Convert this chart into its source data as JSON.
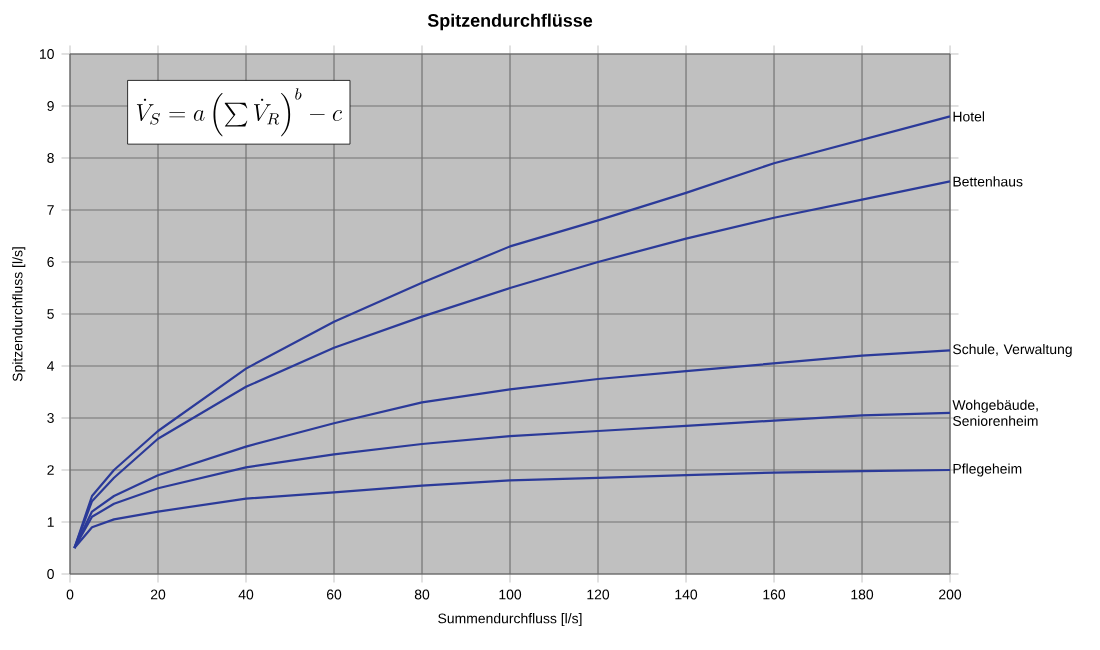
{
  "chart_data": {
    "type": "line",
    "title": "Spitzendurchflüsse",
    "xlabel": "Summendurchfluss [l/s]",
    "ylabel": "Spitzendurchfluss [l/s]",
    "annotations": [
      "\\dot{V}_{S} = a\\left(\\sum \\dot{V}_{R}\\right)^{b} - c"
    ],
    "x": [
      1,
      5,
      10,
      20,
      40,
      60,
      80,
      100,
      120,
      140,
      160,
      180,
      200
    ],
    "series": [
      {
        "name": "Hotel",
        "color": "#2b3a99",
        "values": [
          0.5,
          1.5,
          2.0,
          2.75,
          3.95,
          4.85,
          5.6,
          6.3,
          6.8,
          7.33,
          7.9,
          8.35,
          8.8
        ]
      },
      {
        "name": "Bettenhaus",
        "color": "#2b3a99",
        "values": [
          0.5,
          1.4,
          1.85,
          2.6,
          3.6,
          4.35,
          4.95,
          5.5,
          6.0,
          6.45,
          6.85,
          7.2,
          7.55
        ]
      },
      {
        "name": "Schule, Verwaltung",
        "color": "#2b3a99",
        "values": [
          0.5,
          1.2,
          1.5,
          1.9,
          2.45,
          2.9,
          3.3,
          3.55,
          3.75,
          3.9,
          4.05,
          4.2,
          4.3
        ]
      },
      {
        "name": "Wohgebäude, Seniorenheim",
        "color": "#2b3a99",
        "values": [
          0.5,
          1.1,
          1.35,
          1.65,
          2.05,
          2.3,
          2.5,
          2.65,
          2.75,
          2.85,
          2.95,
          3.05,
          3.1
        ]
      },
      {
        "name": "Pflegeheim",
        "color": "#2b3a99",
        "values": [
          0.5,
          0.9,
          1.05,
          1.2,
          1.45,
          1.57,
          1.7,
          1.8,
          1.85,
          1.9,
          1.95,
          1.98,
          2.0
        ]
      }
    ],
    "xlim": [
      0,
      200
    ],
    "ylim": [
      0,
      10
    ],
    "xticks": [
      0,
      20,
      40,
      60,
      80,
      100,
      120,
      140,
      160,
      180,
      200
    ],
    "yticks": [
      0,
      1,
      2,
      3,
      4,
      5,
      6,
      7,
      8,
      9,
      10
    ],
    "grid": true,
    "legend": false,
    "marker": "none",
    "line_style": "solid"
  }
}
